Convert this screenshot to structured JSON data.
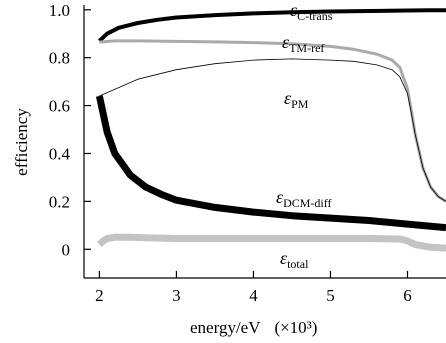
{
  "chart_data": {
    "type": "line",
    "xlabel": "energy/eV",
    "xlabel_suffix": "(×10³)",
    "ylabel": "efficiency",
    "xlim": [
      1.8,
      6.5
    ],
    "ylim": [
      -0.12,
      1.02
    ],
    "xticks": [
      2,
      3,
      4,
      5,
      6
    ],
    "yticks": [
      0,
      0.2,
      0.4,
      0.6,
      0.8,
      1.0
    ],
    "ytick_labels": [
      "0",
      "0.2",
      "0.4",
      "0.6",
      "0.8",
      "1.0"
    ],
    "grid": false,
    "series": [
      {
        "name": "ε",
        "sub": "C-trans",
        "color": "#000000",
        "width": 4,
        "x": [
          2.0,
          2.1,
          2.25,
          2.5,
          2.75,
          3.0,
          3.5,
          4.0,
          4.5,
          5.0,
          5.5,
          6.0,
          6.3,
          6.5
        ],
        "y": [
          0.87,
          0.9,
          0.925,
          0.945,
          0.958,
          0.968,
          0.978,
          0.985,
          0.99,
          0.993,
          0.995,
          0.997,
          0.998,
          0.998
        ]
      },
      {
        "name": "ε",
        "sub": "TM-ref",
        "color": "#aaaaaa",
        "width": 3,
        "x": [
          2.0,
          2.2,
          2.5,
          3.0,
          3.5,
          4.0,
          4.5,
          5.0,
          5.3,
          5.6,
          5.8,
          5.9,
          6.0,
          6.05,
          6.1,
          6.2,
          6.3,
          6.4,
          6.5
        ],
        "y": [
          0.865,
          0.87,
          0.87,
          0.868,
          0.866,
          0.863,
          0.858,
          0.847,
          0.835,
          0.815,
          0.79,
          0.76,
          0.67,
          0.58,
          0.48,
          0.34,
          0.26,
          0.22,
          0.2
        ]
      },
      {
        "name": "ε",
        "sub": "PM",
        "color": "#000000",
        "width": 0.8,
        "x": [
          2.0,
          2.5,
          3.0,
          3.5,
          4.0,
          4.5,
          5.0,
          5.3,
          5.6,
          5.8,
          5.9,
          6.0,
          6.05,
          6.1,
          6.2,
          6.3,
          6.4,
          6.5
        ],
        "y": [
          0.64,
          0.71,
          0.75,
          0.775,
          0.79,
          0.795,
          0.79,
          0.785,
          0.77,
          0.75,
          0.72,
          0.65,
          0.57,
          0.48,
          0.34,
          0.26,
          0.22,
          0.2
        ]
      },
      {
        "name": "ε",
        "sub": "DCM-diff",
        "color": "#000000",
        "width": 7,
        "x": [
          2.0,
          2.1,
          2.2,
          2.4,
          2.6,
          2.8,
          3.0,
          3.5,
          4.0,
          4.5,
          5.0,
          5.5,
          6.0,
          6.5
        ],
        "y": [
          0.64,
          0.49,
          0.4,
          0.31,
          0.26,
          0.23,
          0.205,
          0.175,
          0.155,
          0.14,
          0.13,
          0.12,
          0.105,
          0.09
        ]
      },
      {
        "name": "ε",
        "sub": "total",
        "color": "#c4c4c4",
        "width": 7,
        "x": [
          2.0,
          2.05,
          2.1,
          2.2,
          2.4,
          2.6,
          3.0,
          3.5,
          4.0,
          4.5,
          5.0,
          5.5,
          5.9,
          6.0,
          6.1,
          6.3,
          6.5
        ],
        "y": [
          0.02,
          0.035,
          0.045,
          0.05,
          0.05,
          0.048,
          0.045,
          0.045,
          0.045,
          0.045,
          0.045,
          0.045,
          0.043,
          0.035,
          0.02,
          0.008,
          0.005
        ]
      }
    ]
  }
}
